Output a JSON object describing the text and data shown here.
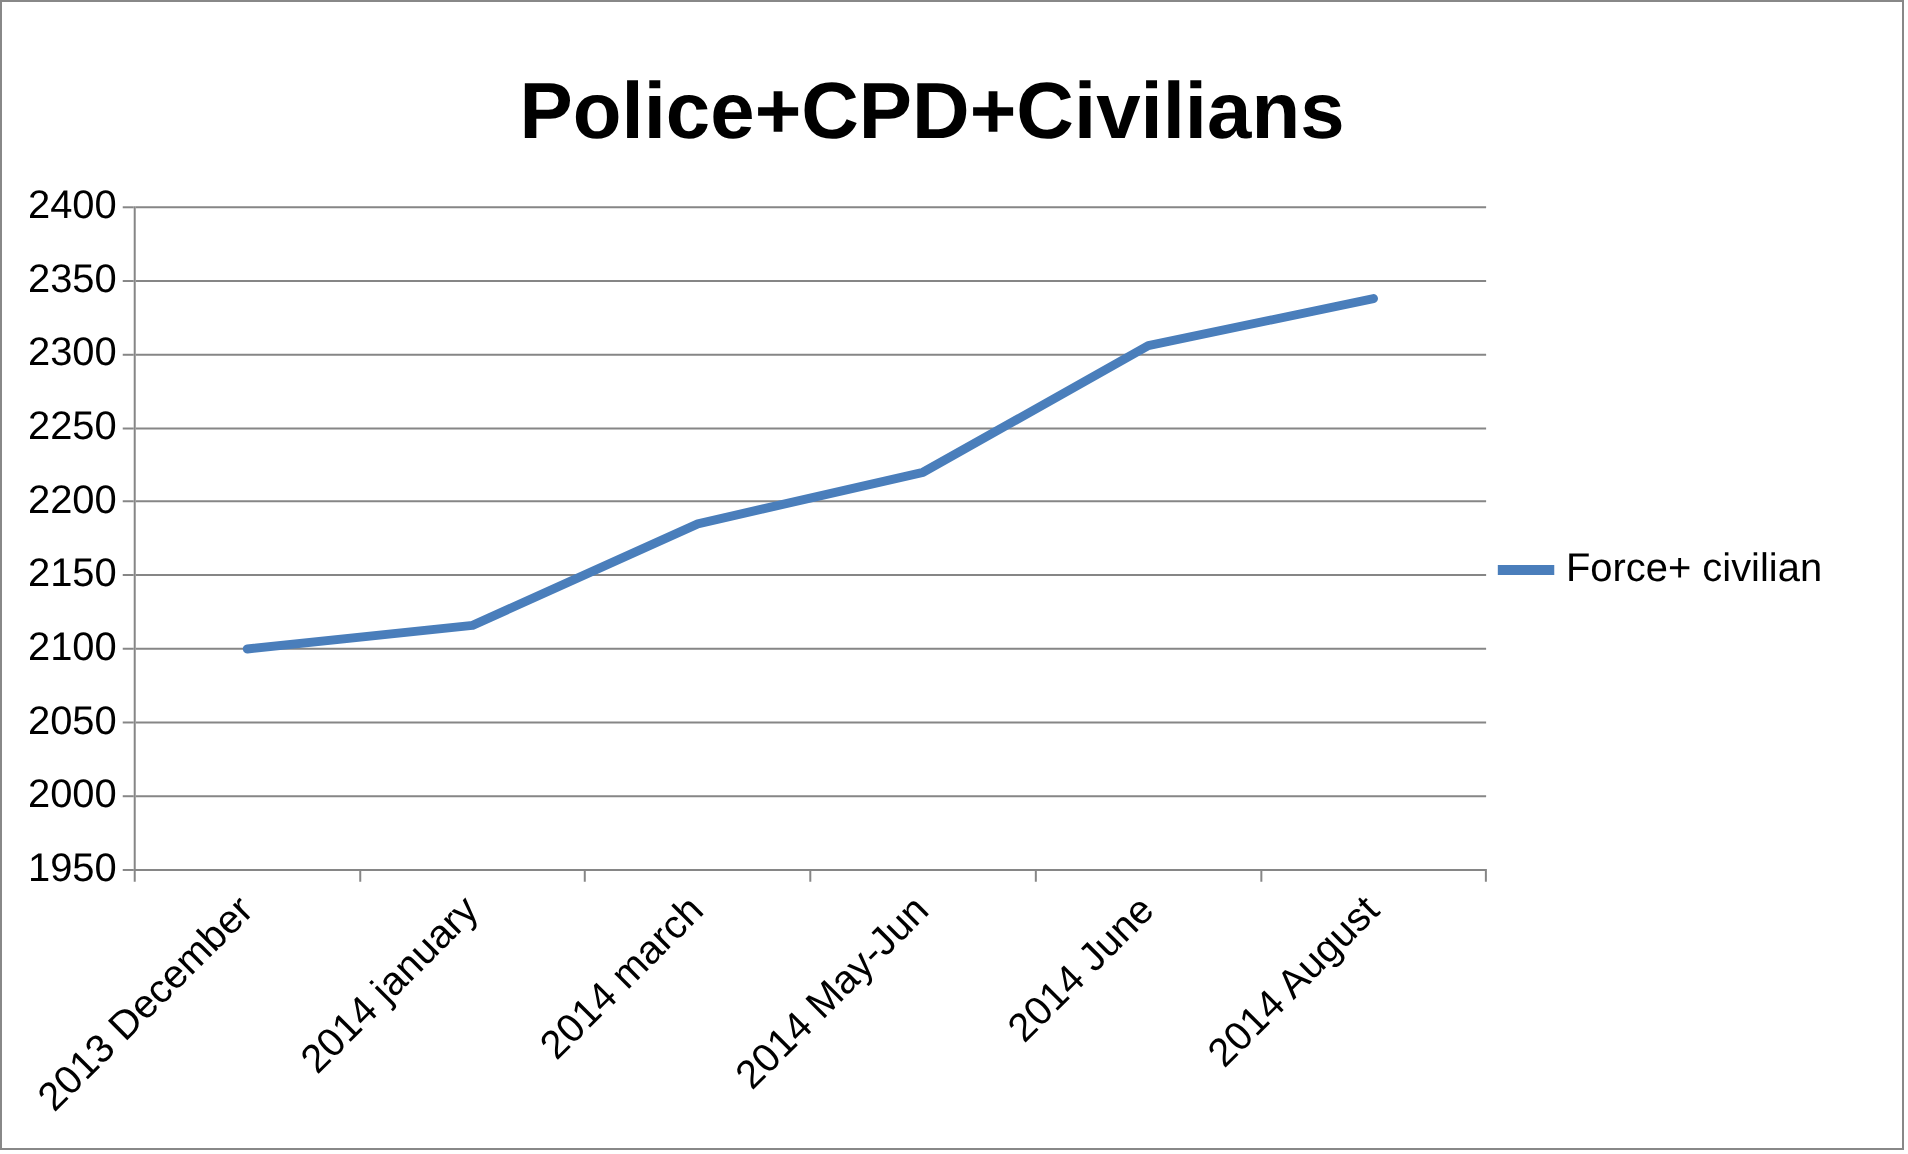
{
  "chart_data": {
    "type": "line",
    "title": "Police+CPD+Civilians",
    "categories": [
      "2013 December",
      "2014 january",
      "2014 march",
      "2014 May-Jun",
      "2014 June",
      "2014 August"
    ],
    "series": [
      {
        "name": "Force+ civilian",
        "color": "#4a7ebb",
        "values": [
          2100,
          2116,
          2185,
          2220,
          2306,
          2338
        ]
      }
    ],
    "ylim": [
      1950,
      2400
    ],
    "yticks": [
      1950,
      2000,
      2050,
      2100,
      2150,
      2200,
      2250,
      2300,
      2350,
      2400
    ],
    "grid": "y",
    "legend": "right",
    "marker": "none",
    "line_style": "solid"
  }
}
